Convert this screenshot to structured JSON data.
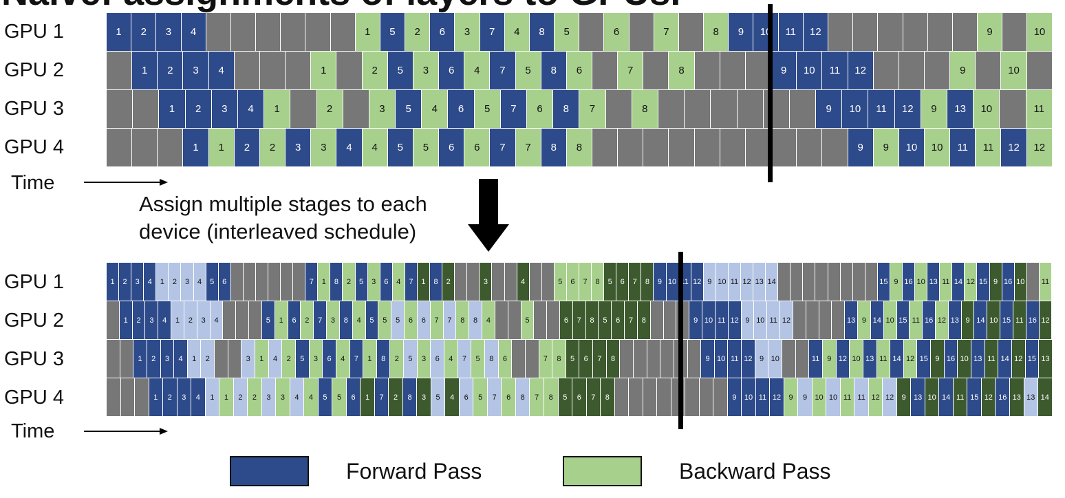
{
  "title": "Naïve: assignments of layers to GPUs.",
  "gpu_labels": [
    "GPU 1",
    "GPU 2",
    "GPU 3",
    "GPU 4"
  ],
  "time_label": "Time",
  "caption_line1": "Assign multiple stages to each",
  "caption_line2": "device (interleaved schedule)",
  "colors": {
    "forward": "#2d4a8a",
    "backward": "#a8d08d",
    "forward_chunk2": "#b4c4e4",
    "backward_chunk2": "#3d5a2e",
    "idle": "#777777"
  },
  "legend": [
    {
      "label": "Forward Pass",
      "color": "#2d4a8a"
    },
    {
      "label": "Backward Pass",
      "color": "#a8d08d"
    }
  ],
  "top_schedule": [
    [
      "F:1",
      "F:2",
      "F:3",
      "F:4",
      "G",
      "G",
      "G",
      "G",
      "G",
      "G",
      "B:1",
      "F:5",
      "B:2",
      "F:6",
      "B:3",
      "F:7",
      "B:4",
      "F:8",
      "B:5",
      "G",
      "B:6",
      "G",
      "B:7",
      "G",
      "B:8",
      "F:9",
      "F:10",
      "F:11",
      "F:12",
      "G",
      "G",
      "G",
      "G",
      "G",
      "G",
      "B:9",
      "G",
      "B:10"
    ],
    [
      "G",
      "F:1",
      "F:2",
      "F:3",
      "F:4",
      "G",
      "G",
      "G",
      "B:1",
      "G",
      "B:2",
      "F:5",
      "B:3",
      "F:6",
      "B:4",
      "F:7",
      "B:5",
      "F:8",
      "B:6",
      "G",
      "B:7",
      "G",
      "B:8",
      "G",
      "G",
      "G",
      "F:9",
      "F:10",
      "F:11",
      "F:12",
      "G",
      "G",
      "G",
      "B:9",
      "G",
      "B:10",
      "G"
    ],
    [
      "G",
      "G",
      "F:1",
      "F:2",
      "F:3",
      "F:4",
      "B:1",
      "G",
      "B:2",
      "G",
      "B:3",
      "F:5",
      "B:4",
      "F:6",
      "B:5",
      "F:7",
      "B:6",
      "F:8",
      "B:7",
      "G",
      "B:8",
      "G",
      "G",
      "G",
      "G",
      "G",
      "G",
      "F:9",
      "F:10",
      "F:11",
      "F:12",
      "B:9",
      "F:13",
      "B:10",
      "G",
      "B:11"
    ],
    [
      "G",
      "G",
      "G",
      "F:1",
      "B:1",
      "F:2",
      "B:2",
      "F:3",
      "B:3",
      "F:4",
      "B:4",
      "F:5",
      "B:5",
      "F:6",
      "B:6",
      "F:7",
      "B:7",
      "F:8",
      "B:8",
      "G",
      "G",
      "G",
      "G",
      "G",
      "G",
      "G",
      "G",
      "G",
      "G",
      "F:9",
      "B:9",
      "F:10",
      "B:10",
      "F:11",
      "B:11",
      "F:12",
      "B:12"
    ]
  ],
  "bottom_schedule": [
    [
      "F:1",
      "F:2",
      "F:3",
      "F:4",
      "f:1",
      "f:2",
      "f:3",
      "f:4",
      "F:5",
      "F:6",
      "G",
      "G",
      "G",
      "G",
      "G",
      "G",
      "F:7",
      "B:1",
      "F:8",
      "B:2",
      "F:5",
      "B:3",
      "F:6",
      "B:4",
      "F:7",
      "b:1",
      "F:8",
      "b:2",
      "G",
      "G",
      "b:3",
      "G",
      "G",
      "b:4",
      "G",
      "G",
      "B:5",
      "B:6",
      "B:7",
      "B:8",
      "b:5",
      "b:6",
      "b:7",
      "b:8",
      "F:9",
      "F:10",
      "F:11",
      "F:12",
      "f:9",
      "f:10",
      "f:11",
      "f:12",
      "f:13",
      "f:14",
      "G",
      "G",
      "G",
      "G",
      "G",
      "G",
      "G",
      "G",
      "F:15",
      "B:9",
      "F:16",
      "B:10",
      "F:13",
      "B:11",
      "F:14",
      "B:12",
      "F:15",
      "b:9",
      "F:16",
      "b:10",
      "G",
      "B:11"
    ],
    [
      "G",
      "F:1",
      "F:2",
      "F:3",
      "F:4",
      "f:1",
      "f:2",
      "f:3",
      "f:4",
      "G",
      "G",
      "G",
      "F:5",
      "B:1",
      "F:6",
      "B:2",
      "F:7",
      "B:3",
      "F:8",
      "B:4",
      "F:5",
      "B:5",
      "f:5",
      "B:6",
      "f:6",
      "B:7",
      "f:7",
      "B:8",
      "f:8",
      "B:4",
      "G",
      "G",
      "B:5",
      "G",
      "G",
      "b:6",
      "b:7",
      "b:8",
      "b:5",
      "b:6",
      "b:7",
      "b:8",
      "G",
      "G",
      "G",
      "F:9",
      "F:10",
      "F:11",
      "F:12",
      "f:9",
      "f:10",
      "f:11",
      "f:12",
      "G",
      "G",
      "G",
      "G",
      "F:13",
      "B:9",
      "F:14",
      "B:10",
      "F:15",
      "B:11",
      "F:16",
      "B:12",
      "F:13",
      "b:9",
      "F:14",
      "b:10",
      "F:15",
      "b:11",
      "F:16",
      "b:12"
    ],
    [
      "G",
      "G",
      "F:1",
      "F:2",
      "F:3",
      "F:4",
      "f:1",
      "f:2",
      "G",
      "G",
      "f:3",
      "B:1",
      "f:4",
      "B:2",
      "F:5",
      "B:3",
      "F:6",
      "B:4",
      "F:7",
      "B:1",
      "F:8",
      "B:2",
      "f:5",
      "B:3",
      "f:6",
      "B:4",
      "f:7",
      "B:5",
      "f:8",
      "B:6",
      "G",
      "G",
      "B:7",
      "B:8",
      "b:5",
      "b:6",
      "b:7",
      "b:8",
      "G",
      "G",
      "G",
      "G",
      "G",
      "G",
      "F:9",
      "F:10",
      "F:11",
      "F:12",
      "f:9",
      "f:10",
      "G",
      "G",
      "F:11",
      "B:9",
      "F:12",
      "B:10",
      "F:13",
      "B:11",
      "F:14",
      "B:12",
      "F:15",
      "b:9",
      "F:16",
      "b:10",
      "F:13",
      "b:11",
      "F:14",
      "b:12",
      "F:15",
      "b:13"
    ],
    [
      "G",
      "G",
      "G",
      "F:1",
      "F:2",
      "F:3",
      "F:4",
      "f:1",
      "B:1",
      "f:2",
      "B:2",
      "f:3",
      "B:3",
      "f:4",
      "B:4",
      "F:5",
      "B:5",
      "F:6",
      "b:1",
      "F:7",
      "b:2",
      "F:8",
      "b:3",
      "f:5",
      "b:4",
      "f:6",
      "B:5",
      "f:7",
      "B:6",
      "f:8",
      "B:7",
      "B:8",
      "b:5",
      "b:6",
      "b:7",
      "b:8",
      "G",
      "G",
      "G",
      "G",
      "G",
      "G",
      "G",
      "G",
      "F:9",
      "F:10",
      "F:11",
      "F:12",
      "B:9",
      "f:9",
      "B:10",
      "f:10",
      "B:11",
      "f:11",
      "B:12",
      "f:12",
      "b:9",
      "F:13",
      "b:10",
      "F:14",
      "b:11",
      "F:15",
      "b:12",
      "F:16",
      "b:13",
      "f:13",
      "b:14"
    ]
  ]
}
